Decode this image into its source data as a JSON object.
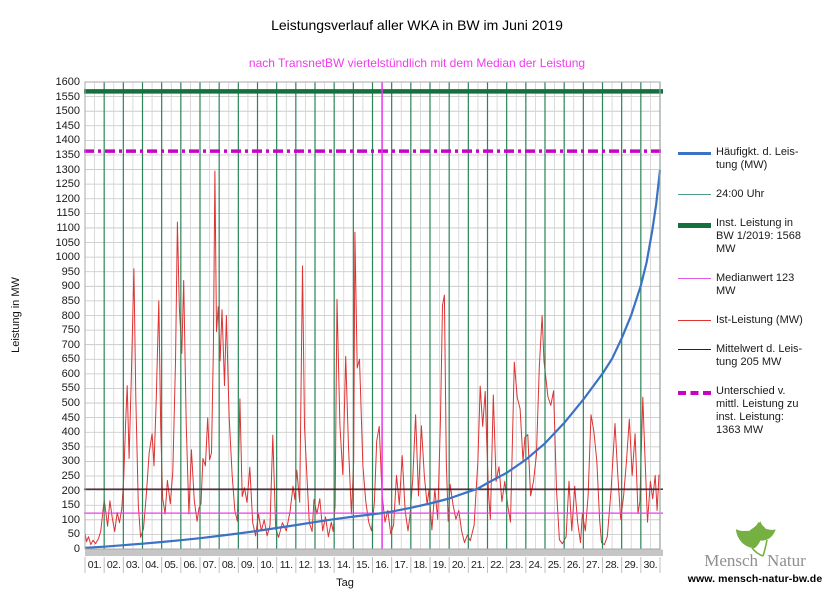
{
  "title": "Leistungsverlauf aller WKA in BW im Juni 2019",
  "subtitle": "nach TransnetBW viertelstündlich mit dem Median der Leistung",
  "axes": {
    "y_label": "Leistung in MW",
    "x_label": "Tag",
    "y_min": 0,
    "y_max": 1600,
    "y_step": 50,
    "x_days": 30,
    "x_tick_labels": [
      "01.",
      "02.",
      "03.",
      "04.",
      "05.",
      "06.",
      "07.",
      "08.",
      "09.",
      "10.",
      "11.",
      "12.",
      "13.",
      "14.",
      "15.",
      "16.",
      "17.",
      "18.",
      "19.",
      "20.",
      "21.",
      "22.",
      "23.",
      "24.",
      "25.",
      "26.",
      "27.",
      "28.",
      "29.",
      "30."
    ]
  },
  "legend": {
    "items": [
      {
        "name": "haeufigkeit-leistung",
        "label_lines": [
          "Häufigkt. d. Leis-",
          "tung (MW)"
        ],
        "color": "#3a72c4",
        "weight": 3,
        "dash": ""
      },
      {
        "name": "24-uhr",
        "label_lines": [
          "24:00 Uhr"
        ],
        "color": "#4e9a8a",
        "weight": 1,
        "dash": ""
      },
      {
        "name": "inst-leistung",
        "label_lines": [
          "Inst. Leistung in",
          "BW 1/2019: 1568",
          "MW"
        ],
        "color": "#156f3f",
        "weight": 5,
        "dash": ""
      },
      {
        "name": "medianwert",
        "label_lines": [
          "Medianwert 123",
          "MW"
        ],
        "color": "#e25ce2",
        "weight": 1,
        "dash": ""
      },
      {
        "name": "ist-leistung",
        "label_lines": [
          "Ist-Leistung (MW)"
        ],
        "color": "#dd3333",
        "weight": 1,
        "dash": ""
      },
      {
        "name": "mittelwert",
        "label_lines": [
          "Mittelwert d. Leis-",
          "tung 205 MW"
        ],
        "color": "#45112b",
        "weight": 1,
        "dash": ""
      },
      {
        "name": "unterschied",
        "label_lines": [
          "Unterschied v.",
          "mittl. Leistung zu",
          "inst. Leistung:",
          "1363 MW"
        ],
        "color": "#c803c8",
        "weight": 4,
        "dash": "9 4 2.5 4"
      }
    ]
  },
  "chart_data": {
    "type": "line",
    "x_range_days": [
      0,
      30
    ],
    "y_range_mw": [
      0,
      1600
    ],
    "grid": {
      "y_major_mw": 50,
      "x_minor_days": 0.5,
      "x_day_line_color": "#2a8457",
      "h_grid_color": "#c4c4c4",
      "minor_v_color": "#d2d2d2"
    },
    "reference_lines": [
      {
        "name": "inst-leistung",
        "label": "Inst. Leistung in BW 1/2019: 1568 MW",
        "orientation": "horizontal",
        "value": 1568,
        "color": "#156f3f",
        "width": 4.5,
        "dash": ""
      },
      {
        "name": "unterschied",
        "label": "Unterschied v. mittl. Leistung zu inst. Leistung: 1363 MW",
        "orientation": "horizontal",
        "value": 1363,
        "color": "#c803c8",
        "width": 3.5,
        "dash": "10 4 3 4"
      },
      {
        "name": "mittelwert",
        "label": "Mittelwert d. Leistung 205 MW",
        "orientation": "horizontal",
        "value": 205,
        "color": "#45112b",
        "width": 1.3,
        "dash": ""
      },
      {
        "name": "medianwert",
        "label": "Medianwert 123 MW",
        "orientation": "horizontal",
        "value": 123,
        "color": "#ee3bee",
        "width": 1.2,
        "dash": ""
      },
      {
        "name": "median-tag-marker",
        "orientation": "vertical",
        "value": 15.5,
        "color": "#e935e9",
        "width": 1.5,
        "dash": ""
      }
    ],
    "day_lines": {
      "label": "24:00 Uhr",
      "at_each_day_end": true,
      "color": "#2a8457",
      "width": 1.2
    },
    "series": [
      {
        "name": "Ist-Leistung (MW)",
        "color": "#dd3333",
        "width": 1,
        "points": [
          [
            0,
            55
          ],
          [
            0.08,
            25
          ],
          [
            0.18,
            42
          ],
          [
            0.3,
            15
          ],
          [
            0.42,
            30
          ],
          [
            0.55,
            18
          ],
          [
            0.7,
            35
          ],
          [
            0.82,
            60
          ],
          [
            0.92,
            120
          ],
          [
            1,
            168
          ],
          [
            1.08,
            130
          ],
          [
            1.18,
            78
          ],
          [
            1.3,
            165
          ],
          [
            1.42,
            108
          ],
          [
            1.55,
            60
          ],
          [
            1.68,
            125
          ],
          [
            1.8,
            90
          ],
          [
            1.92,
            140
          ],
          [
            2.02,
            240
          ],
          [
            2.12,
            430
          ],
          [
            2.2,
            560
          ],
          [
            2.3,
            310
          ],
          [
            2.42,
            600
          ],
          [
            2.55,
            960
          ],
          [
            2.65,
            520
          ],
          [
            2.78,
            150
          ],
          [
            2.9,
            40
          ],
          [
            3.05,
            70
          ],
          [
            3.2,
            185
          ],
          [
            3.35,
            330
          ],
          [
            3.5,
            395
          ],
          [
            3.6,
            285
          ],
          [
            3.72,
            520
          ],
          [
            3.85,
            850
          ],
          [
            3.95,
            420
          ],
          [
            4.05,
            175
          ],
          [
            4.18,
            120
          ],
          [
            4.3,
            235
          ],
          [
            4.45,
            155
          ],
          [
            4.58,
            265
          ],
          [
            4.72,
            640
          ],
          [
            4.82,
            1120
          ],
          [
            4.92,
            830
          ],
          [
            5.05,
            670
          ],
          [
            5.15,
            920
          ],
          [
            5.28,
            430
          ],
          [
            5.42,
            120
          ],
          [
            5.55,
            340
          ],
          [
            5.7,
            165
          ],
          [
            5.85,
            95
          ],
          [
            5.95,
            140
          ],
          [
            6.05,
            155
          ],
          [
            6.15,
            310
          ],
          [
            6.28,
            285
          ],
          [
            6.4,
            450
          ],
          [
            6.5,
            305
          ],
          [
            6.6,
            330
          ],
          [
            6.7,
            690
          ],
          [
            6.78,
            1295
          ],
          [
            6.86,
            745
          ],
          [
            6.95,
            830
          ],
          [
            7.05,
            645
          ],
          [
            7.15,
            820
          ],
          [
            7.28,
            560
          ],
          [
            7.38,
            800
          ],
          [
            7.52,
            455
          ],
          [
            7.68,
            250
          ],
          [
            7.82,
            130
          ],
          [
            7.95,
            95
          ],
          [
            8.08,
            515
          ],
          [
            8.2,
            180
          ],
          [
            8.32,
            210
          ],
          [
            8.45,
            160
          ],
          [
            8.6,
            280
          ],
          [
            8.75,
            90
          ],
          [
            8.9,
            45
          ],
          [
            9.05,
            120
          ],
          [
            9.2,
            62
          ],
          [
            9.35,
            100
          ],
          [
            9.5,
            45
          ],
          [
            9.65,
            80
          ],
          [
            9.8,
            390
          ],
          [
            9.95,
            70
          ],
          [
            10.1,
            40
          ],
          [
            10.3,
            90
          ],
          [
            10.5,
            62
          ],
          [
            10.7,
            130
          ],
          [
            10.85,
            215
          ],
          [
            10.95,
            170
          ],
          [
            11.05,
            270
          ],
          [
            11.2,
            160
          ],
          [
            11.35,
            970
          ],
          [
            11.45,
            420
          ],
          [
            11.58,
            250
          ],
          [
            11.7,
            90
          ],
          [
            11.85,
            60
          ],
          [
            11.95,
            170
          ],
          [
            12.1,
            120
          ],
          [
            12.25,
            172
          ],
          [
            12.4,
            62
          ],
          [
            12.55,
            110
          ],
          [
            12.7,
            42
          ],
          [
            12.85,
            92
          ],
          [
            12.95,
            60
          ],
          [
            13.05,
            150
          ],
          [
            13.15,
            855
          ],
          [
            13.3,
            425
          ],
          [
            13.45,
            255
          ],
          [
            13.6,
            660
          ],
          [
            13.75,
            350
          ],
          [
            13.9,
            120
          ],
          [
            14.02,
            300
          ],
          [
            14.08,
            1085
          ],
          [
            14.2,
            620
          ],
          [
            14.32,
            650
          ],
          [
            14.5,
            285
          ],
          [
            14.65,
            162
          ],
          [
            14.8,
            92
          ],
          [
            14.95,
            62
          ],
          [
            15.1,
            160
          ],
          [
            15.22,
            370
          ],
          [
            15.35,
            420
          ],
          [
            15.5,
            185
          ],
          [
            15.65,
            92
          ],
          [
            15.8,
            132
          ],
          [
            15.95,
            52
          ],
          [
            16.1,
            82
          ],
          [
            16.25,
            252
          ],
          [
            16.4,
            152
          ],
          [
            16.55,
            320
          ],
          [
            16.7,
            132
          ],
          [
            16.85,
            62
          ],
          [
            16.95,
            112
          ],
          [
            17.1,
            242
          ],
          [
            17.25,
            460
          ],
          [
            17.4,
            182
          ],
          [
            17.55,
            422
          ],
          [
            17.7,
            252
          ],
          [
            17.85,
            152
          ],
          [
            17.95,
            202
          ],
          [
            18.1,
            65
          ],
          [
            18.25,
            205
          ],
          [
            18.4,
            102
          ],
          [
            18.55,
            450
          ],
          [
            18.65,
            835
          ],
          [
            18.75,
            870
          ],
          [
            18.85,
            300
          ],
          [
            18.95,
            95
          ],
          [
            19.05,
            222
          ],
          [
            19.2,
            152
          ],
          [
            19.35,
            102
          ],
          [
            19.5,
            132
          ],
          [
            19.65,
            62
          ],
          [
            19.8,
            22
          ],
          [
            19.95,
            48
          ],
          [
            20.1,
            28
          ],
          [
            20.3,
            82
          ],
          [
            20.5,
            302
          ],
          [
            20.62,
            558
          ],
          [
            20.75,
            420
          ],
          [
            20.88,
            540
          ],
          [
            20.97,
            352
          ],
          [
            21.05,
            192
          ],
          [
            21.15,
            102
          ],
          [
            21.3,
            528
          ],
          [
            21.45,
            232
          ],
          [
            21.6,
            282
          ],
          [
            21.75,
            162
          ],
          [
            21.9,
            232
          ],
          [
            22.05,
            152
          ],
          [
            22.2,
            92
          ],
          [
            22.4,
            640
          ],
          [
            22.55,
            520
          ],
          [
            22.7,
            480
          ],
          [
            22.85,
            302
          ],
          [
            22.95,
            382
          ],
          [
            23.1,
            392
          ],
          [
            23.25,
            182
          ],
          [
            23.4,
            232
          ],
          [
            23.55,
            322
          ],
          [
            23.7,
            622
          ],
          [
            23.85,
            800
          ],
          [
            23.95,
            642
          ],
          [
            24.05,
            582
          ],
          [
            24.15,
            522
          ],
          [
            24.3,
            492
          ],
          [
            24.45,
            542
          ],
          [
            24.6,
            202
          ],
          [
            24.75,
            32
          ],
          [
            24.9,
            18
          ],
          [
            25.1,
            42
          ],
          [
            25.25,
            232
          ],
          [
            25.4,
            62
          ],
          [
            25.55,
            215
          ],
          [
            25.7,
            92
          ],
          [
            25.85,
            22
          ],
          [
            25.95,
            122
          ],
          [
            26.1,
            62
          ],
          [
            26.25,
            182
          ],
          [
            26.4,
            460
          ],
          [
            26.55,
            402
          ],
          [
            26.7,
            302
          ],
          [
            26.85,
            102
          ],
          [
            26.95,
            22
          ],
          [
            27.1,
            15
          ],
          [
            27.25,
            42
          ],
          [
            27.45,
            202
          ],
          [
            27.65,
            430
          ],
          [
            27.8,
            252
          ],
          [
            27.95,
            102
          ],
          [
            28.1,
            182
          ],
          [
            28.25,
            302
          ],
          [
            28.4,
            445
          ],
          [
            28.55,
            252
          ],
          [
            28.7,
            395
          ],
          [
            28.85,
            122
          ],
          [
            28.95,
            162
          ],
          [
            29.1,
            520
          ],
          [
            29.22,
            312
          ],
          [
            29.35,
            92
          ],
          [
            29.5,
            232
          ],
          [
            29.62,
            172
          ],
          [
            29.75,
            252
          ],
          [
            29.85,
            132
          ],
          [
            29.95,
            255
          ]
        ]
      },
      {
        "name": "Häufigkt. d. Leistung (MW)",
        "color": "#3a72c4",
        "width": 2.2,
        "points": [
          [
            0,
            4
          ],
          [
            1,
            8
          ],
          [
            2,
            13
          ],
          [
            3,
            18
          ],
          [
            4,
            24
          ],
          [
            5,
            30
          ],
          [
            6,
            37
          ],
          [
            7,
            45
          ],
          [
            8,
            53
          ],
          [
            9,
            62
          ],
          [
            10,
            72
          ],
          [
            11,
            82
          ],
          [
            12,
            92
          ],
          [
            13,
            102
          ],
          [
            14,
            111
          ],
          [
            15,
            119
          ],
          [
            15.5,
            123
          ],
          [
            16,
            128
          ],
          [
            17,
            141
          ],
          [
            18,
            156
          ],
          [
            19,
            173
          ],
          [
            20,
            196
          ],
          [
            20.5,
            207
          ],
          [
            21,
            226
          ],
          [
            22,
            261
          ],
          [
            23,
            306
          ],
          [
            24,
            362
          ],
          [
            25,
            432
          ],
          [
            26,
            512
          ],
          [
            27,
            601
          ],
          [
            27.5,
            652
          ],
          [
            28,
            722
          ],
          [
            28.5,
            802
          ],
          [
            29,
            902
          ],
          [
            29.3,
            982
          ],
          [
            29.6,
            1092
          ],
          [
            29.8,
            1182
          ],
          [
            30,
            1298
          ]
        ]
      }
    ]
  },
  "footer": {
    "brand_mensch": "Mensch",
    "brand_natur": "Natur",
    "url": "www. mensch-natur-bw.de",
    "leaf_color": "#76b043"
  }
}
